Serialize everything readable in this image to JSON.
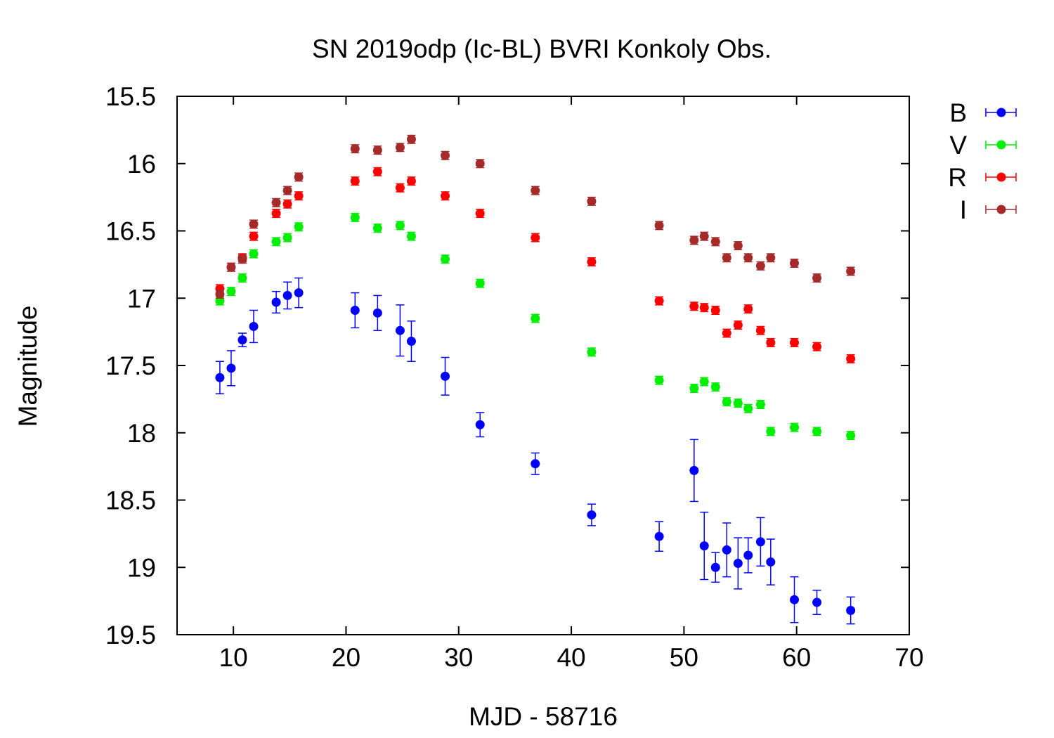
{
  "chart_data": {
    "type": "scatter",
    "title": "SN 2019odp (Ic-BL) BVRI Konkoly Obs.",
    "xlabel": "MJD - 58716",
    "ylabel": "Magnitude",
    "xlim": [
      5,
      70
    ],
    "ylim": [
      19.5,
      15.5
    ],
    "y_inverted": true,
    "grid": false,
    "legend_position": "outside-right",
    "x_ticks": [
      10,
      20,
      30,
      40,
      50,
      60,
      70
    ],
    "x_tick_labels": [
      "10",
      "20",
      "30",
      "40",
      "50",
      "60",
      "70"
    ],
    "y_ticks": [
      15.5,
      16,
      16.5,
      17,
      17.5,
      18,
      18.5,
      19,
      19.5
    ],
    "y_tick_labels": [
      "15.5",
      "16",
      "16.5",
      "17",
      "17.5",
      "18",
      "18.5",
      "19",
      "19.5"
    ],
    "series": [
      {
        "name": "B",
        "color": "#0000ff",
        "x": [
          8.8,
          9.8,
          10.8,
          11.8,
          13.8,
          14.8,
          15.8,
          20.8,
          22.8,
          24.8,
          25.8,
          28.8,
          31.9,
          36.8,
          41.8,
          47.8,
          50.9,
          51.8,
          52.8,
          53.8,
          54.8,
          55.7,
          56.8,
          57.7,
          59.8,
          61.8,
          64.8
        ],
        "y": [
          17.59,
          17.52,
          17.31,
          17.21,
          17.03,
          16.98,
          16.96,
          17.09,
          17.11,
          17.24,
          17.32,
          17.58,
          17.94,
          18.23,
          18.61,
          18.77,
          18.28,
          18.84,
          19.0,
          18.87,
          18.97,
          18.91,
          18.81,
          18.96,
          19.24,
          19.26,
          19.32
        ],
        "err": [
          0.12,
          0.13,
          0.05,
          0.12,
          0.08,
          0.1,
          0.11,
          0.13,
          0.13,
          0.19,
          0.15,
          0.14,
          0.09,
          0.08,
          0.08,
          0.11,
          0.23,
          0.25,
          0.11,
          0.2,
          0.19,
          0.13,
          0.18,
          0.17,
          0.17,
          0.09,
          0.1
        ]
      },
      {
        "name": "V",
        "color": "#00ee00",
        "x": [
          8.8,
          9.8,
          10.8,
          11.8,
          13.8,
          14.8,
          15.8,
          20.8,
          22.8,
          24.8,
          25.8,
          28.8,
          31.9,
          36.8,
          41.8,
          47.8,
          50.9,
          51.8,
          52.8,
          53.8,
          54.8,
          55.7,
          56.8,
          57.7,
          59.8,
          61.8,
          64.8
        ],
        "y": [
          17.02,
          16.95,
          16.85,
          16.67,
          16.58,
          16.55,
          16.47,
          16.4,
          16.48,
          16.46,
          16.54,
          16.71,
          16.89,
          17.15,
          17.4,
          17.61,
          17.67,
          17.62,
          17.66,
          17.77,
          17.78,
          17.82,
          17.79,
          17.99,
          17.96,
          17.99,
          18.02
        ]
      },
      {
        "name": "R",
        "color": "#ff0000",
        "x": [
          8.8,
          9.8,
          10.8,
          11.8,
          13.8,
          14.8,
          15.8,
          20.8,
          22.8,
          24.8,
          25.8,
          28.8,
          31.9,
          36.8,
          41.8,
          47.8,
          50.9,
          51.8,
          52.8,
          53.8,
          54.8,
          55.7,
          56.8,
          57.7,
          59.8,
          61.8,
          64.8
        ],
        "y": [
          16.93,
          16.77,
          16.7,
          16.54,
          16.37,
          16.3,
          16.24,
          16.13,
          16.06,
          16.18,
          16.13,
          16.24,
          16.37,
          16.55,
          16.73,
          17.02,
          17.06,
          17.07,
          17.09,
          17.26,
          17.2,
          17.08,
          17.24,
          17.33,
          17.33,
          17.36,
          17.45
        ]
      },
      {
        "name": "I",
        "color": "#a52a2a",
        "x": [
          8.8,
          9.8,
          10.8,
          11.8,
          13.8,
          14.8,
          15.8,
          20.8,
          22.8,
          24.8,
          25.8,
          28.8,
          31.9,
          36.8,
          41.8,
          47.8,
          50.9,
          51.8,
          52.8,
          53.8,
          54.8,
          55.7,
          56.8,
          57.7,
          59.8,
          61.8,
          64.8
        ],
        "y": [
          16.97,
          16.77,
          16.71,
          16.45,
          16.29,
          16.2,
          16.1,
          15.89,
          15.9,
          15.88,
          15.82,
          15.94,
          16.0,
          16.2,
          16.28,
          16.46,
          16.57,
          16.54,
          16.58,
          16.7,
          16.61,
          16.7,
          16.76,
          16.7,
          16.74,
          16.85,
          16.8
        ]
      }
    ]
  }
}
